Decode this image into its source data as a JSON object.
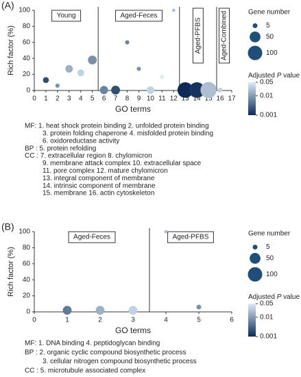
{
  "chart_data": [
    {
      "type": "scatter",
      "panel_label": "(A)",
      "xlabel": "GO terms",
      "ylabel": "Rich factor (%)",
      "x": [
        1,
        2,
        3,
        4,
        5,
        6,
        7,
        8,
        9,
        10,
        11,
        12,
        13,
        14,
        15,
        16
      ],
      "values": [
        13,
        6,
        27,
        22,
        38,
        0.5,
        0.5,
        60,
        27,
        0.5,
        17,
        100,
        0.5,
        0.5,
        0.5,
        0.5
      ],
      "sizes": [
        10,
        3,
        20,
        15,
        30,
        25,
        30,
        3,
        3,
        20,
        3,
        1,
        120,
        120,
        130,
        5
      ],
      "pvalues": [
        0.002,
        0.008,
        0.015,
        0.03,
        0.008,
        0.006,
        0.002,
        0.006,
        0.008,
        0.03,
        0.05,
        0.02,
        0.001,
        0.0012,
        0.02,
        0.03
      ],
      "xlim": [
        0,
        17
      ],
      "xticks": [
        0,
        1,
        2,
        3,
        4,
        5,
        6,
        7,
        8,
        9,
        10,
        11,
        12,
        13,
        14,
        15,
        16,
        17
      ],
      "ylim": [
        0,
        100
      ],
      "yticks": [
        0,
        20,
        40,
        60,
        80,
        100
      ],
      "dividers": [
        5.5,
        12.5,
        15.7
      ],
      "groups": [
        "Young",
        "Aged-Feces",
        "Aged-PFBS",
        "Aged-Combined"
      ],
      "size_legend": {
        "title": "Gene number",
        "values": [
          5,
          50,
          100
        ]
      },
      "color_legend": {
        "title": [
          "Adjusted ",
          "P",
          " value"
        ],
        "ticks": [
          0.05,
          0.01,
          0.001
        ]
      },
      "caption": [
        "MF: 1. heat shock protein binding 2. unfolded protein binding",
        "3. protein folding chaperone 4. misfolded protein binding",
        "6. oxidoreductase activity",
        "BP : 5. protein refolding",
        "CC : 7. extracellular region 8. chylomicron",
        "9. membrane attack complex 10. extracellular space",
        "11. pore complex 12. mature chylomicron",
        "13. integral component of membrane",
        "14. intrinsic component of membrane",
        "15. membrane 16. actin cytoskeleton"
      ]
    },
    {
      "type": "scatter",
      "panel_label": "(B)",
      "xlabel": "GO terms",
      "ylabel": "Rich factor (%)",
      "x": [
        1,
        2,
        3,
        4,
        5
      ],
      "values": [
        2,
        2,
        2,
        100,
        6
      ],
      "sizes": [
        30,
        30,
        30,
        1,
        5
      ],
      "pvalues": [
        0.005,
        0.015,
        0.03,
        0.02,
        0.008
      ],
      "xlim": [
        0,
        6
      ],
      "xticks": [
        0,
        1,
        2,
        3,
        4,
        5,
        6
      ],
      "ylim": [
        0,
        100
      ],
      "yticks": [
        0,
        20,
        40,
        60,
        80,
        100
      ],
      "dividers": [
        3.5
      ],
      "groups": [
        "Aged-Feces",
        "Aged-PFBS"
      ],
      "size_legend": {
        "title": "Gene number",
        "values": [
          5,
          50,
          100
        ]
      },
      "color_legend": {
        "title": [
          "Adjusted ",
          "P",
          " value"
        ],
        "ticks": [
          0.05,
          0.01,
          0.001
        ]
      },
      "caption": [
        "MF: 1. DNA binding 4. peptidoglycan binding",
        "BP : 2. organic cyclic compound biosynthetic process",
        "3. cellular nitrogen compound biosynthetic process",
        "CC : 5. microtubule associated complex"
      ]
    }
  ]
}
